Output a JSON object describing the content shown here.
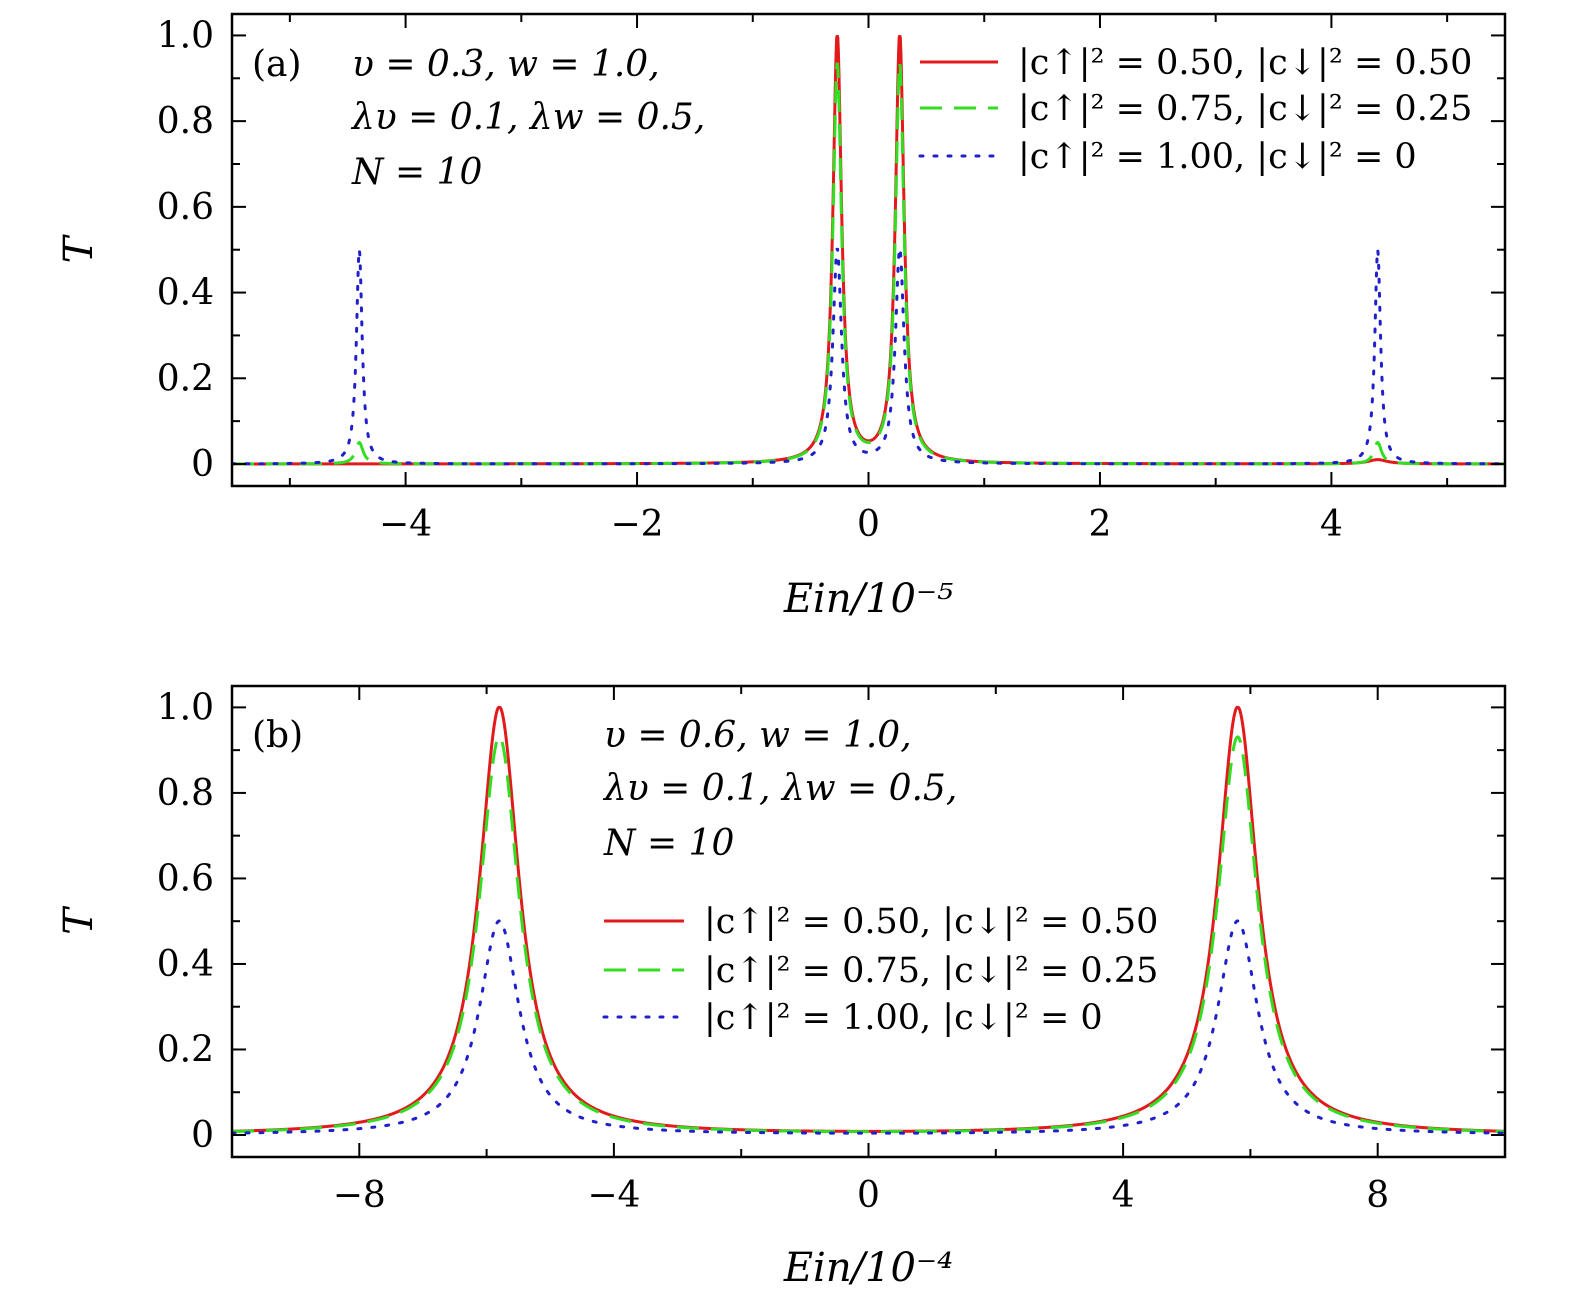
{
  "chart_data": [
    {
      "id": "a",
      "type": "line",
      "panel_label": "(a)",
      "annotation": [
        "υ = 0.3, w = 1.0,",
        "λυ = 0.1, λw = 0.5,",
        "N = 10"
      ],
      "xlabel": "Ein/10⁻⁵",
      "ylabel": "T",
      "xlim": [
        -5.5,
        5.5
      ],
      "ylim": [
        0,
        1.05
      ],
      "xticks": [
        -4,
        -2,
        0,
        2,
        4
      ],
      "xtick_labels": [
        "−4",
        "−2",
        "0",
        "2",
        "4"
      ],
      "yticks": [
        0,
        0.2,
        0.4,
        0.6,
        0.8,
        1.0
      ],
      "ytick_labels": [
        "0",
        "0.2",
        "0.4",
        "0.6",
        "0.8",
        "1.0"
      ],
      "legend_position": "top-right",
      "series": [
        {
          "name": "|c↑|² = 0.50, |c↓|² = 0.50",
          "color": "#e31a1c",
          "style": "solid",
          "peaks": [
            {
              "x": -0.27,
              "height": 1.0,
              "width": 0.045
            },
            {
              "x": 0.27,
              "height": 1.0,
              "width": 0.045
            },
            {
              "x": -4.4,
              "height": 0.0,
              "width": 0.04
            },
            {
              "x": 4.4,
              "height": 0.01,
              "width": 0.1
            }
          ]
        },
        {
          "name": "|c↑|² = 0.75, |c↓|² = 0.25",
          "color": "#33dd22",
          "style": "dashed",
          "peaks": [
            {
              "x": -0.27,
              "height": 0.93,
              "width": 0.045
            },
            {
              "x": 0.27,
              "height": 0.93,
              "width": 0.045
            },
            {
              "x": -4.4,
              "height": 0.05,
              "width": 0.04
            },
            {
              "x": 4.4,
              "height": 0.05,
              "width": 0.04
            }
          ]
        },
        {
          "name": "|c↑|² = 1.00, |c↓|² = 0",
          "color": "#1f1fcc",
          "style": "dotted",
          "peaks": [
            {
              "x": -0.27,
              "height": 0.5,
              "width": 0.045
            },
            {
              "x": 0.27,
              "height": 0.5,
              "width": 0.045
            },
            {
              "x": -4.4,
              "height": 0.5,
              "width": 0.03
            },
            {
              "x": 4.4,
              "height": 0.5,
              "width": 0.03
            }
          ]
        }
      ]
    },
    {
      "id": "b",
      "type": "line",
      "panel_label": "(b)",
      "annotation": [
        "υ = 0.6, w = 1.0,",
        "λυ = 0.1, λw = 0.5,",
        "N = 10"
      ],
      "xlabel": "Ein/10⁻⁴",
      "ylabel": "T",
      "xlim": [
        -10,
        10
      ],
      "ylim": [
        0,
        1.05
      ],
      "xticks": [
        -8,
        -4,
        0,
        4,
        8
      ],
      "xtick_labels": [
        "−8",
        "−4",
        "0",
        "4",
        "8"
      ],
      "yticks": [
        0,
        0.2,
        0.4,
        0.6,
        0.8,
        1.0
      ],
      "ytick_labels": [
        "0",
        "0.2",
        "0.4",
        "0.6",
        "0.8",
        "1.0"
      ],
      "legend_position": "center",
      "series": [
        {
          "name": "|c↑|² = 0.50, |c↓|² = 0.50",
          "color": "#e31a1c",
          "style": "solid",
          "peaks": [
            {
              "x": -5.8,
              "height": 1.0,
              "width": 0.38
            },
            {
              "x": 5.8,
              "height": 1.0,
              "width": 0.38
            }
          ]
        },
        {
          "name": "|c↑|² = 0.75, |c↓|² = 0.25",
          "color": "#33dd22",
          "style": "dashed",
          "peaks": [
            {
              "x": -5.8,
              "height": 0.93,
              "width": 0.38
            },
            {
              "x": 5.8,
              "height": 0.93,
              "width": 0.38
            }
          ]
        },
        {
          "name": "|c↑|² = 1.00, |c↓|² = 0",
          "color": "#1f1fcc",
          "style": "dotted",
          "peaks": [
            {
              "x": -5.8,
              "height": 0.5,
              "width": 0.38
            },
            {
              "x": 5.8,
              "height": 0.5,
              "width": 0.38
            }
          ]
        }
      ]
    }
  ]
}
